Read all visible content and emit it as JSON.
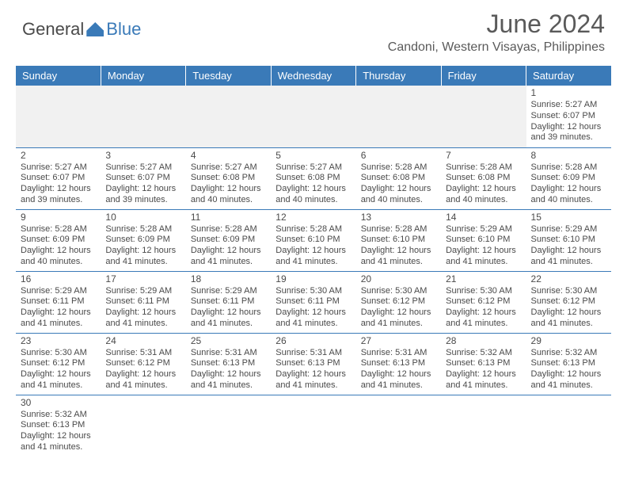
{
  "logo": {
    "left": "General",
    "right": "Blue"
  },
  "title": "June 2024",
  "location": "Candoni, Western Visayas, Philippines",
  "headers": [
    "Sunday",
    "Monday",
    "Tuesday",
    "Wednesday",
    "Thursday",
    "Friday",
    "Saturday"
  ],
  "colors": {
    "header_bg": "#3a7ab8",
    "header_text": "#ffffff",
    "body_text": "#4a4a4a",
    "cell_border": "#3a7ab8",
    "empty_bg": "#f1f1f1"
  },
  "weeks": [
    [
      null,
      null,
      null,
      null,
      null,
      null,
      {
        "day": "1",
        "sunrise": "Sunrise: 5:27 AM",
        "sunset": "Sunset: 6:07 PM",
        "daylight1": "Daylight: 12 hours",
        "daylight2": "and 39 minutes."
      }
    ],
    [
      {
        "day": "2",
        "sunrise": "Sunrise: 5:27 AM",
        "sunset": "Sunset: 6:07 PM",
        "daylight1": "Daylight: 12 hours",
        "daylight2": "and 39 minutes."
      },
      {
        "day": "3",
        "sunrise": "Sunrise: 5:27 AM",
        "sunset": "Sunset: 6:07 PM",
        "daylight1": "Daylight: 12 hours",
        "daylight2": "and 39 minutes."
      },
      {
        "day": "4",
        "sunrise": "Sunrise: 5:27 AM",
        "sunset": "Sunset: 6:08 PM",
        "daylight1": "Daylight: 12 hours",
        "daylight2": "and 40 minutes."
      },
      {
        "day": "5",
        "sunrise": "Sunrise: 5:27 AM",
        "sunset": "Sunset: 6:08 PM",
        "daylight1": "Daylight: 12 hours",
        "daylight2": "and 40 minutes."
      },
      {
        "day": "6",
        "sunrise": "Sunrise: 5:28 AM",
        "sunset": "Sunset: 6:08 PM",
        "daylight1": "Daylight: 12 hours",
        "daylight2": "and 40 minutes."
      },
      {
        "day": "7",
        "sunrise": "Sunrise: 5:28 AM",
        "sunset": "Sunset: 6:08 PM",
        "daylight1": "Daylight: 12 hours",
        "daylight2": "and 40 minutes."
      },
      {
        "day": "8",
        "sunrise": "Sunrise: 5:28 AM",
        "sunset": "Sunset: 6:09 PM",
        "daylight1": "Daylight: 12 hours",
        "daylight2": "and 40 minutes."
      }
    ],
    [
      {
        "day": "9",
        "sunrise": "Sunrise: 5:28 AM",
        "sunset": "Sunset: 6:09 PM",
        "daylight1": "Daylight: 12 hours",
        "daylight2": "and 40 minutes."
      },
      {
        "day": "10",
        "sunrise": "Sunrise: 5:28 AM",
        "sunset": "Sunset: 6:09 PM",
        "daylight1": "Daylight: 12 hours",
        "daylight2": "and 41 minutes."
      },
      {
        "day": "11",
        "sunrise": "Sunrise: 5:28 AM",
        "sunset": "Sunset: 6:09 PM",
        "daylight1": "Daylight: 12 hours",
        "daylight2": "and 41 minutes."
      },
      {
        "day": "12",
        "sunrise": "Sunrise: 5:28 AM",
        "sunset": "Sunset: 6:10 PM",
        "daylight1": "Daylight: 12 hours",
        "daylight2": "and 41 minutes."
      },
      {
        "day": "13",
        "sunrise": "Sunrise: 5:28 AM",
        "sunset": "Sunset: 6:10 PM",
        "daylight1": "Daylight: 12 hours",
        "daylight2": "and 41 minutes."
      },
      {
        "day": "14",
        "sunrise": "Sunrise: 5:29 AM",
        "sunset": "Sunset: 6:10 PM",
        "daylight1": "Daylight: 12 hours",
        "daylight2": "and 41 minutes."
      },
      {
        "day": "15",
        "sunrise": "Sunrise: 5:29 AM",
        "sunset": "Sunset: 6:10 PM",
        "daylight1": "Daylight: 12 hours",
        "daylight2": "and 41 minutes."
      }
    ],
    [
      {
        "day": "16",
        "sunrise": "Sunrise: 5:29 AM",
        "sunset": "Sunset: 6:11 PM",
        "daylight1": "Daylight: 12 hours",
        "daylight2": "and 41 minutes."
      },
      {
        "day": "17",
        "sunrise": "Sunrise: 5:29 AM",
        "sunset": "Sunset: 6:11 PM",
        "daylight1": "Daylight: 12 hours",
        "daylight2": "and 41 minutes."
      },
      {
        "day": "18",
        "sunrise": "Sunrise: 5:29 AM",
        "sunset": "Sunset: 6:11 PM",
        "daylight1": "Daylight: 12 hours",
        "daylight2": "and 41 minutes."
      },
      {
        "day": "19",
        "sunrise": "Sunrise: 5:30 AM",
        "sunset": "Sunset: 6:11 PM",
        "daylight1": "Daylight: 12 hours",
        "daylight2": "and 41 minutes."
      },
      {
        "day": "20",
        "sunrise": "Sunrise: 5:30 AM",
        "sunset": "Sunset: 6:12 PM",
        "daylight1": "Daylight: 12 hours",
        "daylight2": "and 41 minutes."
      },
      {
        "day": "21",
        "sunrise": "Sunrise: 5:30 AM",
        "sunset": "Sunset: 6:12 PM",
        "daylight1": "Daylight: 12 hours",
        "daylight2": "and 41 minutes."
      },
      {
        "day": "22",
        "sunrise": "Sunrise: 5:30 AM",
        "sunset": "Sunset: 6:12 PM",
        "daylight1": "Daylight: 12 hours",
        "daylight2": "and 41 minutes."
      }
    ],
    [
      {
        "day": "23",
        "sunrise": "Sunrise: 5:30 AM",
        "sunset": "Sunset: 6:12 PM",
        "daylight1": "Daylight: 12 hours",
        "daylight2": "and 41 minutes."
      },
      {
        "day": "24",
        "sunrise": "Sunrise: 5:31 AM",
        "sunset": "Sunset: 6:12 PM",
        "daylight1": "Daylight: 12 hours",
        "daylight2": "and 41 minutes."
      },
      {
        "day": "25",
        "sunrise": "Sunrise: 5:31 AM",
        "sunset": "Sunset: 6:13 PM",
        "daylight1": "Daylight: 12 hours",
        "daylight2": "and 41 minutes."
      },
      {
        "day": "26",
        "sunrise": "Sunrise: 5:31 AM",
        "sunset": "Sunset: 6:13 PM",
        "daylight1": "Daylight: 12 hours",
        "daylight2": "and 41 minutes."
      },
      {
        "day": "27",
        "sunrise": "Sunrise: 5:31 AM",
        "sunset": "Sunset: 6:13 PM",
        "daylight1": "Daylight: 12 hours",
        "daylight2": "and 41 minutes."
      },
      {
        "day": "28",
        "sunrise": "Sunrise: 5:32 AM",
        "sunset": "Sunset: 6:13 PM",
        "daylight1": "Daylight: 12 hours",
        "daylight2": "and 41 minutes."
      },
      {
        "day": "29",
        "sunrise": "Sunrise: 5:32 AM",
        "sunset": "Sunset: 6:13 PM",
        "daylight1": "Daylight: 12 hours",
        "daylight2": "and 41 minutes."
      }
    ],
    [
      {
        "day": "30",
        "sunrise": "Sunrise: 5:32 AM",
        "sunset": "Sunset: 6:13 PM",
        "daylight1": "Daylight: 12 hours",
        "daylight2": "and 41 minutes."
      },
      null,
      null,
      null,
      null,
      null,
      null
    ]
  ]
}
